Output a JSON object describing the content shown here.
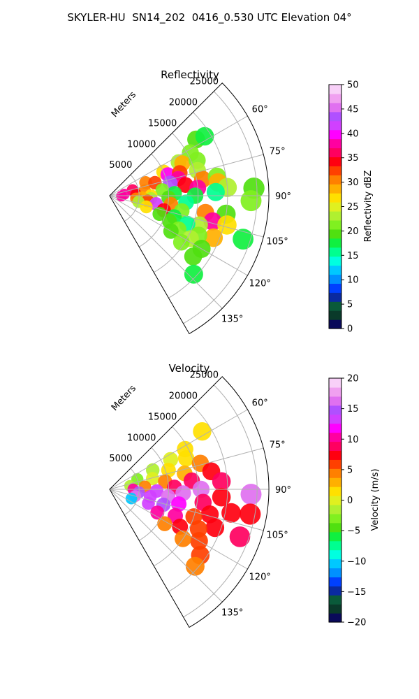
{
  "figure": {
    "suptitle": "SKYLER-HU  SN14_202  0416_0.530 UTC Elevation 04°"
  },
  "chart_data": [
    {
      "type": "heatmap",
      "projection": "polar sector (azimuth clockwise from north)",
      "title": "Reflectivity",
      "range_axis_label": "Meters",
      "range_ticks": [
        5000,
        10000,
        15000,
        20000,
        25000
      ],
      "range_tick_labels": [
        "5000",
        "10000",
        "15000",
        "20000",
        "25000"
      ],
      "azimuth_range_deg": [
        45,
        150
      ],
      "azimuth_ticks_deg": [
        60,
        75,
        90,
        105,
        120,
        135
      ],
      "azimuth_tick_labels": [
        "60°",
        "75°",
        "90°",
        "105°",
        "120°",
        "135°"
      ],
      "grid": true,
      "colorbar": {
        "label": "Reflectivity dBZ",
        "range": [
          0,
          50
        ],
        "ticks": [
          0,
          5,
          10,
          15,
          20,
          25,
          30,
          35,
          40,
          45,
          50
        ],
        "tick_labels": [
          "0",
          "5",
          "10",
          "15",
          "20",
          "25",
          "30",
          "35",
          "40",
          "45",
          "50"
        ],
        "colors": [
          "#0a0a5a",
          "#0a3a2a",
          "#0a5a3a",
          "#0a2aa0",
          "#0040ff",
          "#0090ff",
          "#00c8ff",
          "#00ffe0",
          "#00ff90",
          "#10f040",
          "#50e010",
          "#80f020",
          "#b0f030",
          "#e0f020",
          "#ffe000",
          "#ffb000",
          "#ff8000",
          "#ff4000",
          "#ff0010",
          "#ff0060",
          "#ff00a0",
          "#ff00ff",
          "#d040ff",
          "#b050ff",
          "#e070f0",
          "#f0a0f0",
          "#f8d0f8"
        ]
      },
      "cells": [
        {
          "az": 57,
          "r": 17500,
          "v": 20
        },
        {
          "az": 58,
          "r": 19000,
          "v": 18
        },
        {
          "az": 62,
          "r": 15500,
          "v": 22
        },
        {
          "az": 64,
          "r": 13000,
          "v": 24
        },
        {
          "az": 66,
          "r": 10000,
          "v": 27
        },
        {
          "az": 66,
          "r": 13500,
          "v": 28
        },
        {
          "az": 68,
          "r": 16000,
          "v": 22
        },
        {
          "az": 70,
          "r": 6500,
          "v": 30
        },
        {
          "az": 70,
          "r": 10500,
          "v": 40
        },
        {
          "az": 72,
          "r": 12500,
          "v": 32
        },
        {
          "az": 74,
          "r": 8000,
          "v": 33
        },
        {
          "az": 74,
          "r": 15500,
          "v": 24
        },
        {
          "az": 76,
          "r": 4000,
          "v": 36
        },
        {
          "az": 76,
          "r": 12000,
          "v": 38
        },
        {
          "az": 78,
          "r": 10500,
          "v": 43
        },
        {
          "az": 80,
          "r": 16000,
          "v": 30
        },
        {
          "az": 80,
          "r": 18500,
          "v": 22
        },
        {
          "az": 82,
          "r": 6000,
          "v": 30
        },
        {
          "az": 82,
          "r": 13000,
          "v": 34
        },
        {
          "az": 83,
          "r": 18500,
          "v": 28
        },
        {
          "az": 84,
          "r": 2500,
          "v": 38
        },
        {
          "az": 84,
          "r": 9000,
          "v": 22
        },
        {
          "az": 85,
          "r": 15000,
          "v": 38
        },
        {
          "az": 86,
          "r": 20000,
          "v": 24
        },
        {
          "az": 88,
          "r": 4500,
          "v": 34
        },
        {
          "az": 88,
          "r": 11000,
          "v": 18
        },
        {
          "az": 88,
          "r": 18000,
          "v": 15
        },
        {
          "az": 90,
          "r": 7000,
          "v": 26
        },
        {
          "az": 90,
          "r": 14500,
          "v": 18
        },
        {
          "az": 92,
          "r": 2000,
          "v": 38
        },
        {
          "az": 92,
          "r": 10000,
          "v": 20
        },
        {
          "az": 93,
          "r": 5500,
          "v": 28
        },
        {
          "az": 94,
          "r": 7000,
          "v": 24
        },
        {
          "az": 95,
          "r": 13000,
          "v": 16
        },
        {
          "az": 96,
          "r": 4500,
          "v": 30
        },
        {
          "az": 98,
          "r": 6500,
          "v": 32
        },
        {
          "az": 98,
          "r": 10500,
          "v": 30
        },
        {
          "az": 99,
          "r": 20000,
          "v": 20
        },
        {
          "az": 100,
          "r": 8000,
          "v": 42
        },
        {
          "az": 100,
          "r": 16500,
          "v": 30
        },
        {
          "az": 102,
          "r": 5000,
          "v": 24
        },
        {
          "az": 102,
          "r": 12500,
          "v": 22
        },
        {
          "az": 104,
          "r": 18000,
          "v": 38
        },
        {
          "az": 104,
          "r": 20500,
          "v": 26
        },
        {
          "az": 105,
          "r": 9500,
          "v": 34
        },
        {
          "az": 107,
          "r": 6500,
          "v": 26
        },
        {
          "az": 108,
          "r": 11500,
          "v": 18
        },
        {
          "az": 108,
          "r": 16000,
          "v": 24
        },
        {
          "az": 110,
          "r": 9000,
          "v": 20
        },
        {
          "az": 110,
          "r": 14000,
          "v": 16
        },
        {
          "az": 112,
          "r": 19000,
          "v": 28
        },
        {
          "az": 113,
          "r": 11000,
          "v": 20
        },
        {
          "az": 114,
          "r": 16500,
          "v": 22
        },
        {
          "az": 116,
          "r": 13000,
          "v": 22
        },
        {
          "az": 118,
          "r": 15500,
          "v": 24
        },
        {
          "az": 120,
          "r": 12000,
          "v": 20
        },
        {
          "az": 120,
          "r": 18000,
          "v": 20
        },
        {
          "az": 123,
          "r": 14500,
          "v": 22
        },
        {
          "az": 126,
          "r": 17500,
          "v": 20
        },
        {
          "az": 133,
          "r": 19500,
          "v": 18
        },
        {
          "az": 87,
          "r": 24500,
          "v": 20
        },
        {
          "az": 92,
          "r": 24000,
          "v": 22
        },
        {
          "az": 108,
          "r": 23800,
          "v": 18
        }
      ]
    },
    {
      "type": "heatmap",
      "projection": "polar sector (azimuth clockwise from north)",
      "title": "Velocity",
      "range_axis_label": "Meters",
      "range_ticks": [
        5000,
        10000,
        15000,
        20000,
        25000
      ],
      "range_tick_labels": [
        "5000",
        "10000",
        "15000",
        "20000",
        "25000"
      ],
      "azimuth_range_deg": [
        45,
        150
      ],
      "azimuth_ticks_deg": [
        60,
        75,
        90,
        105,
        120,
        135
      ],
      "azimuth_tick_labels": [
        "60°",
        "75°",
        "90°",
        "105°",
        "120°",
        "135°"
      ],
      "grid": true,
      "colorbar": {
        "label": "Velocity (m/s)",
        "range": [
          -20,
          20
        ],
        "ticks": [
          -20,
          -15,
          -10,
          -5,
          0,
          5,
          10,
          15,
          20
        ],
        "tick_labels": [
          "−20",
          "−15",
          "−10",
          "−5",
          "0",
          "5",
          "10",
          "15",
          "20"
        ],
        "colors": [
          "#0a0a5a",
          "#0a3a2a",
          "#0a5a3a",
          "#0a2aa0",
          "#0040ff",
          "#0090ff",
          "#00c8ff",
          "#00ffe0",
          "#00ff90",
          "#10f040",
          "#50e010",
          "#80f020",
          "#b0f030",
          "#e0f020",
          "#ffe000",
          "#ffb000",
          "#ff8000",
          "#ff4000",
          "#ff0010",
          "#ff0060",
          "#ff00a0",
          "#ff00ff",
          "#d040ff",
          "#b050ff",
          "#e070f0",
          "#f0a0f0",
          "#f8d0f8"
        ]
      },
      "cells": [
        {
          "az": 58,
          "r": 18500,
          "v": 2
        },
        {
          "az": 62,
          "r": 14500,
          "v": 1
        },
        {
          "az": 64,
          "r": 11500,
          "v": 0
        },
        {
          "az": 66,
          "r": 8000,
          "v": -2
        },
        {
          "az": 68,
          "r": 14000,
          "v": 2
        },
        {
          "az": 70,
          "r": 5000,
          "v": -3
        },
        {
          "az": 72,
          "r": 10500,
          "v": 1
        },
        {
          "az": 74,
          "r": 16000,
          "v": 4
        },
        {
          "az": 76,
          "r": 7500,
          "v": 0
        },
        {
          "az": 78,
          "r": 13000,
          "v": 3
        },
        {
          "az": 80,
          "r": 3500,
          "v": -2
        },
        {
          "az": 80,
          "r": 17500,
          "v": 8
        },
        {
          "az": 82,
          "r": 9500,
          "v": 5
        },
        {
          "az": 84,
          "r": 14000,
          "v": 9
        },
        {
          "az": 86,
          "r": 6000,
          "v": 4
        },
        {
          "az": 86,
          "r": 19000,
          "v": 9
        },
        {
          "az": 88,
          "r": 11000,
          "v": 9
        },
        {
          "az": 90,
          "r": 4000,
          "v": 11
        },
        {
          "az": 90,
          "r": 15500,
          "v": 16
        },
        {
          "az": 92,
          "r": 8000,
          "v": 14
        },
        {
          "az": 93,
          "r": 12500,
          "v": 16
        },
        {
          "az": 94,
          "r": 19000,
          "v": 8
        },
        {
          "az": 96,
          "r": 5000,
          "v": 15
        },
        {
          "az": 97,
          "r": 10000,
          "v": 17
        },
        {
          "az": 98,
          "r": 16000,
          "v": 9
        },
        {
          "az": 100,
          "r": 7000,
          "v": 14
        },
        {
          "az": 101,
          "r": 21000,
          "v": 8
        },
        {
          "az": 102,
          "r": 12000,
          "v": 12
        },
        {
          "az": 104,
          "r": 17500,
          "v": 7
        },
        {
          "az": 105,
          "r": 4500,
          "v": 16
        },
        {
          "az": 106,
          "r": 9500,
          "v": 15
        },
        {
          "az": 108,
          "r": 15000,
          "v": 6
        },
        {
          "az": 110,
          "r": 7000,
          "v": 14
        },
        {
          "az": 110,
          "r": 19000,
          "v": 7
        },
        {
          "az": 112,
          "r": 12000,
          "v": 11
        },
        {
          "az": 113,
          "r": 4000,
          "v": -11
        },
        {
          "az": 114,
          "r": 16500,
          "v": 6
        },
        {
          "az": 116,
          "r": 9000,
          "v": 10
        },
        {
          "az": 118,
          "r": 13500,
          "v": 8
        },
        {
          "az": 120,
          "r": 17500,
          "v": 6
        },
        {
          "az": 122,
          "r": 11000,
          "v": 5
        },
        {
          "az": 124,
          "r": 15000,
          "v": 4
        },
        {
          "az": 126,
          "r": 19000,
          "v": 6
        },
        {
          "az": 132,
          "r": 19500,
          "v": 4
        },
        {
          "az": 92,
          "r": 24000,
          "v": 16
        },
        {
          "az": 100,
          "r": 24200,
          "v": 8
        },
        {
          "az": 110,
          "r": 23500,
          "v": 9
        }
      ]
    }
  ]
}
